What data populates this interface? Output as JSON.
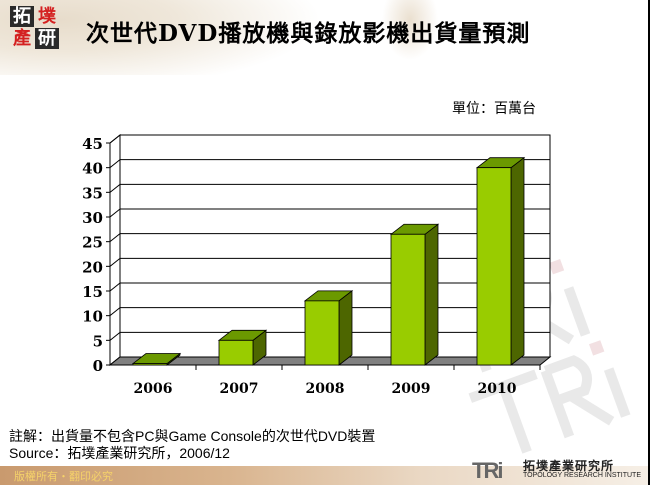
{
  "header": {
    "logo_chars": [
      "拓",
      "墣",
      "產",
      "研"
    ],
    "title": "次世代DVD播放機與錄放影機出貨量預測"
  },
  "unit_label": "單位：百萬台",
  "chart_data": {
    "type": "bar",
    "title": "次世代DVD播放機與錄放影機出貨量預測",
    "xlabel": "",
    "ylabel": "單位：百萬台",
    "categories": [
      "2006",
      "2007",
      "2008",
      "2009",
      "2010"
    ],
    "values": [
      0.3,
      5,
      13,
      26.5,
      40
    ],
    "ylim": [
      0,
      45
    ],
    "yticks": [
      0,
      5,
      10,
      15,
      20,
      25,
      30,
      35,
      40,
      45
    ],
    "grid": true,
    "legend": null,
    "style": "3d-column",
    "colors": {
      "front": "#99cc00",
      "top": "#6b9900",
      "side": "#4d6600",
      "floor": "#808080"
    }
  },
  "notes": {
    "line1": "註解：出貨量不包含PC與Game Console的次世代DVD裝置",
    "line2": "Source：拓墣產業研究所，2006/12"
  },
  "footer": {
    "copyright": "版權所有・翻印必究",
    "brand_logo_text": "TRi",
    "brand_cn": "拓墣產業研究所",
    "brand_en": "TOPOLOGY RESEARCH INSTITUTE"
  }
}
